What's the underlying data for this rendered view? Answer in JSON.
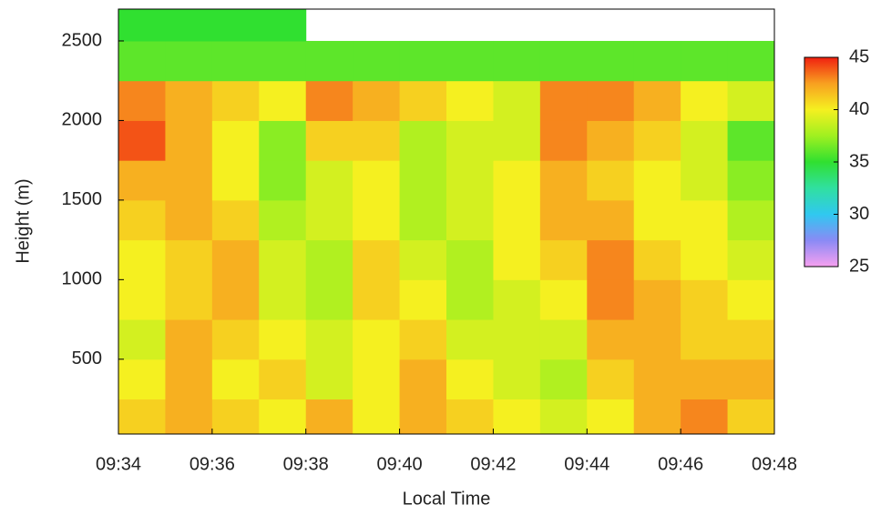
{
  "chart_data": {
    "type": "heatmap",
    "x_label": "Local Time",
    "y_label": "Height (m)",
    "x_bins": [
      "09:34",
      "09:35",
      "09:36",
      "09:37",
      "09:38",
      "09:39",
      "09:40",
      "09:41",
      "09:42",
      "09:43",
      "09:44",
      "09:45",
      "09:46",
      "09:47",
      "09:48"
    ],
    "y_bins": [
      30,
      250,
      500,
      750,
      1000,
      1250,
      1500,
      1750,
      2000,
      2250,
      2500,
      2700
    ],
    "values": [
      [
        41,
        42,
        41,
        40,
        42,
        40,
        42,
        41,
        40,
        39,
        40,
        42,
        43,
        41
      ],
      [
        40,
        42,
        40,
        41,
        39,
        40,
        42,
        40,
        39,
        38,
        41,
        42,
        42,
        42
      ],
      [
        39,
        42,
        41,
        40,
        39,
        40,
        41,
        39,
        39,
        39,
        42,
        42,
        41,
        41
      ],
      [
        40,
        41,
        42,
        39,
        38,
        41,
        40,
        38,
        39,
        40,
        43,
        42,
        41,
        40
      ],
      [
        40,
        41,
        42,
        39,
        38,
        41,
        39,
        38,
        40,
        41,
        43,
        41,
        40,
        39
      ],
      [
        41,
        42,
        41,
        38,
        39,
        40,
        38,
        39,
        40,
        42,
        42,
        40,
        40,
        38
      ],
      [
        42,
        42,
        40,
        37,
        39,
        40,
        38,
        39,
        40,
        42,
        41,
        40,
        39,
        37
      ],
      [
        44,
        42,
        40,
        37,
        41,
        41,
        38,
        39,
        39,
        43,
        42,
        41,
        39,
        36
      ],
      [
        43,
        42,
        41,
        40,
        43,
        42,
        41,
        40,
        39,
        43,
        43,
        42,
        40,
        39
      ],
      [
        36,
        36,
        36,
        36,
        36,
        36,
        36,
        36,
        36,
        36,
        36,
        36,
        36,
        36
      ],
      [
        35,
        35,
        35,
        35,
        null,
        null,
        null,
        null,
        null,
        null,
        null,
        null,
        null,
        null
      ]
    ],
    "xlim": [
      "09:34",
      "09:48"
    ],
    "xticks": [
      "09:34",
      "09:36",
      "09:38",
      "09:40",
      "09:42",
      "09:44",
      "09:46",
      "09:48"
    ],
    "ylim": [
      30,
      2700
    ],
    "yticks": [
      500,
      1000,
      1500,
      2000,
      2500
    ],
    "clim": [
      25,
      45
    ],
    "cticks": [
      25,
      30,
      35,
      40,
      45
    ],
    "colors": [
      "#f7a0f0",
      "#8a8af5",
      "#30c8f0",
      "#30e0a0",
      "#30e030",
      "#a0f020",
      "#f5f020",
      "#f8a020",
      "#f02010"
    ]
  }
}
